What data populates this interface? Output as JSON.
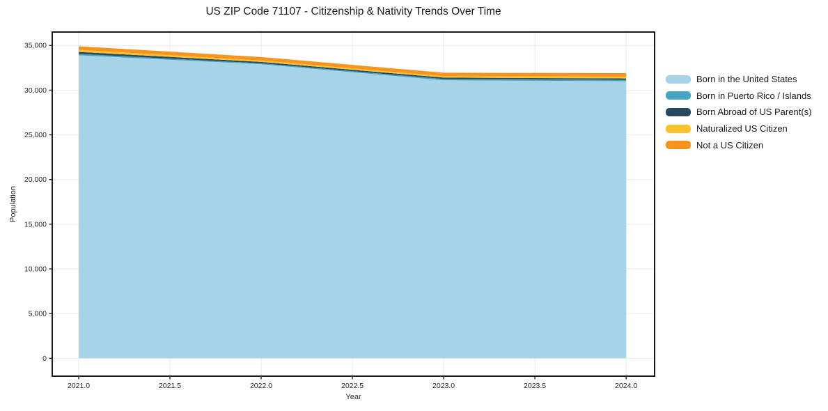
{
  "chart_data": {
    "type": "area",
    "stacked": true,
    "title": "US ZIP Code 71107 - Citizenship & Nativity Trends Over Time",
    "xlabel": "Year",
    "ylabel": "Population",
    "x": [
      2021,
      2022,
      2023,
      2024
    ],
    "series": [
      {
        "name": "Born in the United States",
        "color": "#a7d3e8",
        "values": [
          33900,
          32900,
          31100,
          31000
        ]
      },
      {
        "name": "Born in Puerto Rico / Islands",
        "color": "#46a5c2",
        "values": [
          150,
          100,
          150,
          160
        ]
      },
      {
        "name": "Born Abroad of US Parent(s)",
        "color": "#27495d",
        "values": [
          230,
          160,
          150,
          150
        ]
      },
      {
        "name": "Naturalized US Citizen",
        "color": "#fcc22d",
        "values": [
          230,
          150,
          160,
          200
        ]
      },
      {
        "name": "Not a US Citizen",
        "color": "#f7941f",
        "values": [
          400,
          390,
          390,
          390
        ]
      }
    ],
    "xticks": {
      "values": [
        2021,
        2021.5,
        2022,
        2022.5,
        2023,
        2023.5,
        2024
      ],
      "labels": [
        "2021.0",
        "2021.5",
        "2022.0",
        "2022.5",
        "2023.0",
        "2023.5",
        "2024.0"
      ]
    },
    "yticks": {
      "values": [
        0,
        5000,
        10000,
        15000,
        20000,
        25000,
        30000,
        35000
      ],
      "labels": [
        "0",
        "5,000",
        "10,000",
        "15,000",
        "20,000",
        "25,000",
        "30,000",
        "35,000"
      ]
    },
    "xlim": [
      2020.855,
      2024.156
    ],
    "ylim": [
      -2000,
      36500
    ],
    "grid": true,
    "legend_position": "right",
    "colors": {
      "grid": "#eaeaea",
      "spine": "#000000",
      "tick": "#262626",
      "text": "#262626",
      "background": "#ffffff"
    }
  }
}
